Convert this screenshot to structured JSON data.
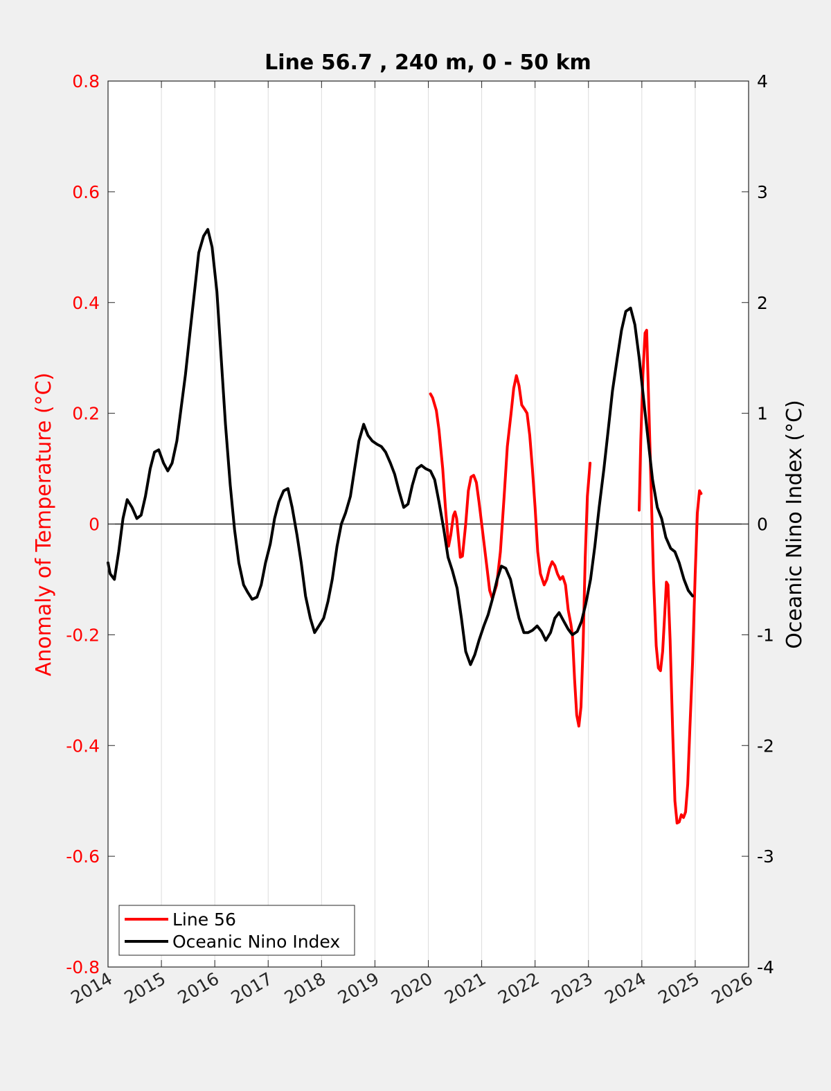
{
  "colors": {
    "left_axis": "#ff0000",
    "right_axis": "#000000",
    "line56": "#ff0000",
    "oni": "#000000",
    "grid": "#dcdcdc",
    "background": "#f0f0f0",
    "plot_bg": "#ffffff"
  },
  "chart_data": {
    "type": "line",
    "title": "Line 56.7 , 240 m, 0 - 50 km",
    "ylabel_left": "Anomaly of Temperature (°C)",
    "ylabel_right": "Oceanic Nino Index (°C)",
    "xlim": [
      2014,
      2026
    ],
    "ylim_left": [
      -0.8,
      0.8
    ],
    "ylim_right": [
      -4,
      4
    ],
    "x_ticks": [
      "2014",
      "2015",
      "2016",
      "2017",
      "2018",
      "2019",
      "2020",
      "2021",
      "2022",
      "2023",
      "2024",
      "2025",
      "2026"
    ],
    "y_ticks_left": [
      "-0.8",
      "-0.6",
      "-0.4",
      "-0.2",
      "0",
      "0.2",
      "0.4",
      "0.6",
      "0.8"
    ],
    "y_ticks_right": [
      "-4",
      "-3",
      "-2",
      "-1",
      "0",
      "1",
      "2",
      "3",
      "4"
    ],
    "grid": "vertical",
    "zero_line": true,
    "legend_position": "bottom-left",
    "legend": [
      "Line 56",
      "Oceanic Nino Index"
    ],
    "series": [
      {
        "name": "Line 56",
        "axis": "left",
        "segments": [
          [
            [
              2020.04,
              0.235
            ],
            [
              2020.08,
              0.228
            ],
            [
              2020.15,
              0.205
            ],
            [
              2020.2,
              0.17
            ],
            [
              2020.27,
              0.1
            ],
            [
              2020.32,
              0.03
            ],
            [
              2020.38,
              -0.04
            ],
            [
              2020.42,
              -0.02
            ],
            [
              2020.47,
              0.015
            ],
            [
              2020.5,
              0.022
            ],
            [
              2020.53,
              0.01
            ],
            [
              2020.56,
              -0.02
            ],
            [
              2020.6,
              -0.06
            ],
            [
              2020.64,
              -0.058
            ],
            [
              2020.7,
              0.0
            ],
            [
              2020.75,
              0.06
            ],
            [
              2020.8,
              0.085
            ],
            [
              2020.85,
              0.088
            ],
            [
              2020.9,
              0.075
            ],
            [
              2020.95,
              0.04
            ],
            [
              2021.0,
              0.0
            ],
            [
              2021.1,
              -0.08
            ],
            [
              2021.15,
              -0.12
            ],
            [
              2021.2,
              -0.135
            ],
            [
              2021.28,
              -0.11
            ],
            [
              2021.35,
              -0.05
            ],
            [
              2021.42,
              0.05
            ],
            [
              2021.48,
              0.14
            ],
            [
              2021.55,
              0.2
            ],
            [
              2021.6,
              0.245
            ],
            [
              2021.65,
              0.268
            ],
            [
              2021.7,
              0.25
            ],
            [
              2021.75,
              0.215
            ],
            [
              2021.8,
              0.208
            ],
            [
              2021.85,
              0.2
            ],
            [
              2021.9,
              0.16
            ],
            [
              2021.95,
              0.1
            ],
            [
              2022.0,
              0.03
            ],
            [
              2022.05,
              -0.05
            ],
            [
              2022.1,
              -0.09
            ],
            [
              2022.17,
              -0.11
            ],
            [
              2022.22,
              -0.1
            ],
            [
              2022.27,
              -0.08
            ],
            [
              2022.32,
              -0.068
            ],
            [
              2022.37,
              -0.075
            ],
            [
              2022.42,
              -0.09
            ],
            [
              2022.47,
              -0.1
            ],
            [
              2022.52,
              -0.095
            ],
            [
              2022.57,
              -0.11
            ],
            [
              2022.62,
              -0.155
            ],
            [
              2022.67,
              -0.18
            ],
            [
              2022.7,
              -0.2
            ],
            [
              2022.74,
              -0.28
            ],
            [
              2022.78,
              -0.345
            ],
            [
              2022.82,
              -0.365
            ],
            [
              2022.86,
              -0.33
            ],
            [
              2022.9,
              -0.22
            ],
            [
              2022.94,
              -0.06
            ],
            [
              2022.98,
              0.05
            ],
            [
              2023.03,
              0.11
            ]
          ],
          [
            [
              2023.95,
              0.025
            ],
            [
              2023.98,
              0.15
            ],
            [
              2024.02,
              0.27
            ],
            [
              2024.06,
              0.345
            ],
            [
              2024.09,
              0.35
            ],
            [
              2024.12,
              0.25
            ],
            [
              2024.17,
              0.08
            ],
            [
              2024.22,
              -0.1
            ],
            [
              2024.27,
              -0.22
            ],
            [
              2024.31,
              -0.26
            ],
            [
              2024.35,
              -0.265
            ],
            [
              2024.39,
              -0.23
            ],
            [
              2024.43,
              -0.16
            ],
            [
              2024.46,
              -0.105
            ],
            [
              2024.49,
              -0.11
            ],
            [
              2024.53,
              -0.21
            ],
            [
              2024.58,
              -0.38
            ],
            [
              2024.62,
              -0.5
            ],
            [
              2024.66,
              -0.54
            ],
            [
              2024.7,
              -0.538
            ],
            [
              2024.74,
              -0.525
            ],
            [
              2024.78,
              -0.53
            ],
            [
              2024.82,
              -0.52
            ],
            [
              2024.86,
              -0.47
            ],
            [
              2024.9,
              -0.37
            ],
            [
              2024.95,
              -0.25
            ],
            [
              2025.0,
              -0.09
            ],
            [
              2025.04,
              0.02
            ],
            [
              2025.08,
              0.06
            ],
            [
              2025.11,
              0.055
            ]
          ]
        ]
      },
      {
        "name": "Oceanic Nino Index",
        "axis": "right",
        "segments": [
          [
            [
              2014.0,
              -0.35
            ],
            [
              2014.04,
              -0.45
            ],
            [
              2014.12,
              -0.5
            ],
            [
              2014.2,
              -0.25
            ],
            [
              2014.28,
              0.05
            ],
            [
              2014.36,
              0.22
            ],
            [
              2014.45,
              0.15
            ],
            [
              2014.54,
              0.05
            ],
            [
              2014.62,
              0.08
            ],
            [
              2014.7,
              0.25
            ],
            [
              2014.79,
              0.5
            ],
            [
              2014.87,
              0.65
            ],
            [
              2014.95,
              0.67
            ],
            [
              2015.04,
              0.55
            ],
            [
              2015.12,
              0.48
            ],
            [
              2015.2,
              0.55
            ],
            [
              2015.29,
              0.75
            ],
            [
              2015.37,
              1.05
            ],
            [
              2015.45,
              1.35
            ],
            [
              2015.54,
              1.75
            ],
            [
              2015.62,
              2.1
            ],
            [
              2015.7,
              2.45
            ],
            [
              2015.79,
              2.6
            ],
            [
              2015.87,
              2.66
            ],
            [
              2015.95,
              2.5
            ],
            [
              2016.04,
              2.1
            ],
            [
              2016.12,
              1.5
            ],
            [
              2016.2,
              0.9
            ],
            [
              2016.29,
              0.35
            ],
            [
              2016.37,
              -0.05
            ],
            [
              2016.45,
              -0.35
            ],
            [
              2016.54,
              -0.55
            ],
            [
              2016.62,
              -0.62
            ],
            [
              2016.7,
              -0.68
            ],
            [
              2016.79,
              -0.66
            ],
            [
              2016.87,
              -0.55
            ],
            [
              2016.95,
              -0.35
            ],
            [
              2017.04,
              -0.18
            ],
            [
              2017.12,
              0.05
            ],
            [
              2017.2,
              0.2
            ],
            [
              2017.29,
              0.3
            ],
            [
              2017.37,
              0.32
            ],
            [
              2017.45,
              0.15
            ],
            [
              2017.54,
              -0.1
            ],
            [
              2017.62,
              -0.35
            ],
            [
              2017.7,
              -0.65
            ],
            [
              2017.79,
              -0.85
            ],
            [
              2017.87,
              -0.98
            ],
            [
              2017.95,
              -0.92
            ],
            [
              2018.04,
              -0.85
            ],
            [
              2018.12,
              -0.7
            ],
            [
              2018.2,
              -0.5
            ],
            [
              2018.29,
              -0.2
            ],
            [
              2018.37,
              0.0
            ],
            [
              2018.45,
              0.1
            ],
            [
              2018.54,
              0.25
            ],
            [
              2018.62,
              0.5
            ],
            [
              2018.7,
              0.75
            ],
            [
              2018.79,
              0.9
            ],
            [
              2018.87,
              0.8
            ],
            [
              2018.95,
              0.75
            ],
            [
              2019.04,
              0.72
            ],
            [
              2019.12,
              0.7
            ],
            [
              2019.2,
              0.65
            ],
            [
              2019.29,
              0.55
            ],
            [
              2019.37,
              0.45
            ],
            [
              2019.45,
              0.3
            ],
            [
              2019.54,
              0.15
            ],
            [
              2019.62,
              0.18
            ],
            [
              2019.7,
              0.35
            ],
            [
              2019.79,
              0.5
            ],
            [
              2019.87,
              0.53
            ],
            [
              2019.95,
              0.5
            ],
            [
              2020.04,
              0.48
            ],
            [
              2020.12,
              0.4
            ],
            [
              2020.2,
              0.2
            ],
            [
              2020.29,
              -0.05
            ],
            [
              2020.37,
              -0.3
            ],
            [
              2020.45,
              -0.42
            ],
            [
              2020.54,
              -0.58
            ],
            [
              2020.62,
              -0.85
            ],
            [
              2020.7,
              -1.15
            ],
            [
              2020.79,
              -1.27
            ],
            [
              2020.87,
              -1.18
            ],
            [
              2020.95,
              -1.05
            ],
            [
              2021.04,
              -0.92
            ],
            [
              2021.12,
              -0.82
            ],
            [
              2021.2,
              -0.68
            ],
            [
              2021.29,
              -0.5
            ],
            [
              2021.37,
              -0.38
            ],
            [
              2021.45,
              -0.4
            ],
            [
              2021.54,
              -0.5
            ],
            [
              2021.62,
              -0.68
            ],
            [
              2021.7,
              -0.85
            ],
            [
              2021.79,
              -0.98
            ],
            [
              2021.87,
              -0.98
            ],
            [
              2021.95,
              -0.96
            ],
            [
              2022.04,
              -0.92
            ],
            [
              2022.12,
              -0.97
            ],
            [
              2022.2,
              -1.05
            ],
            [
              2022.29,
              -0.98
            ],
            [
              2022.37,
              -0.85
            ],
            [
              2022.45,
              -0.8
            ],
            [
              2022.54,
              -0.88
            ],
            [
              2022.62,
              -0.95
            ],
            [
              2022.7,
              -1.0
            ],
            [
              2022.79,
              -0.97
            ],
            [
              2022.87,
              -0.88
            ],
            [
              2022.95,
              -0.72
            ],
            [
              2023.04,
              -0.5
            ],
            [
              2023.12,
              -0.2
            ],
            [
              2023.2,
              0.15
            ],
            [
              2023.29,
              0.5
            ],
            [
              2023.37,
              0.85
            ],
            [
              2023.45,
              1.2
            ],
            [
              2023.54,
              1.5
            ],
            [
              2023.62,
              1.75
            ],
            [
              2023.7,
              1.92
            ],
            [
              2023.79,
              1.95
            ],
            [
              2023.87,
              1.8
            ],
            [
              2023.95,
              1.5
            ],
            [
              2024.04,
              1.1
            ],
            [
              2024.12,
              0.75
            ],
            [
              2024.2,
              0.4
            ],
            [
              2024.29,
              0.15
            ],
            [
              2024.37,
              0.05
            ],
            [
              2024.45,
              -0.12
            ],
            [
              2024.54,
              -0.22
            ],
            [
              2024.62,
              -0.25
            ],
            [
              2024.7,
              -0.35
            ],
            [
              2024.79,
              -0.5
            ],
            [
              2024.87,
              -0.6
            ],
            [
              2024.95,
              -0.65
            ]
          ]
        ]
      }
    ]
  }
}
